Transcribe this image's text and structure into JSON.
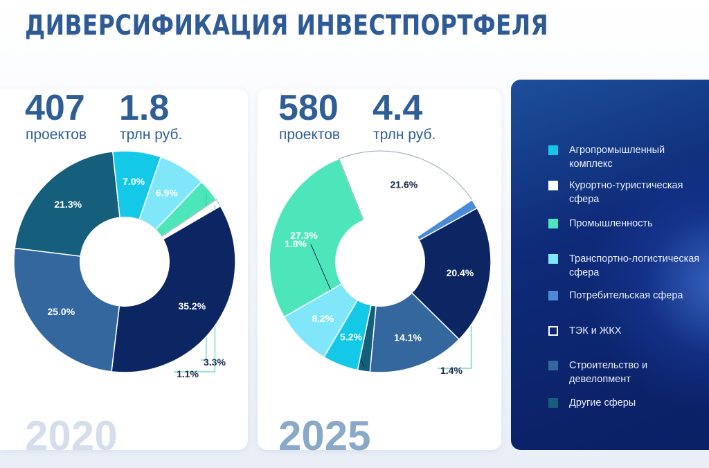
{
  "title": "ДИВЕРСИФИКАЦИЯ ИНВЕСТПОРТФЕЛЯ",
  "panels": [
    {
      "year": "2020",
      "projects_value": "407",
      "projects_label": "проектов",
      "amount_value": "1.8",
      "amount_label": "трлн руб."
    },
    {
      "year": "2025",
      "projects_value": "580",
      "projects_label": "проектов",
      "amount_value": "4.4",
      "amount_label": "трлн руб."
    }
  ],
  "legend": [
    {
      "label": "Агропромышленный комплекс",
      "color": "#14c8e8"
    },
    {
      "label": "Курортно-туристическая сфера",
      "color": "#ffffff"
    },
    {
      "label": "Промышленность",
      "color": "#4de6bb"
    },
    {
      "label": "Транспортно-логистическая сфера",
      "color": "#80e6fa"
    },
    {
      "label": "Потребительская сфера",
      "color": "#4a8ad8"
    },
    {
      "label": "ТЭК и ЖКХ",
      "color": "none"
    },
    {
      "label": "Строительство и девелопмент",
      "color": "#34679e"
    },
    {
      "label": "Другие сферы",
      "color": "#155e7c"
    }
  ],
  "chart_data": [
    {
      "type": "pie",
      "title": "2020",
      "slices": [
        {
          "category": "Другие сферы",
          "value": 21.3,
          "label": "21.3%",
          "color": "#155e7c"
        },
        {
          "category": "Агропромышленный комплекс",
          "value": 7.0,
          "label": "7.0%",
          "color": "#14c8e8"
        },
        {
          "category": "Транспортно-логистическая сфера",
          "value": 6.9,
          "label": "6.9%",
          "color": "#80e6fa"
        },
        {
          "category": "Промышленность",
          "value": 3.3,
          "label": "3.3%",
          "color": "#4de6bb"
        },
        {
          "category": "Курортно-туристическая сфера",
          "value": 1.1,
          "label": "1.1%",
          "color": "#ffffff"
        },
        {
          "category": "ТЭК и ЖКХ",
          "value": 35.2,
          "label": "35.2%",
          "color": "#0c2563"
        },
        {
          "category": "Строительство и девелопмент",
          "value": 25.0,
          "label": "25.0%",
          "color": "#34679e"
        }
      ]
    },
    {
      "type": "pie",
      "title": "2025",
      "slices": [
        {
          "category": "Промышленность",
          "value": 27.3,
          "label": "27.3%",
          "color": "#4de6bb"
        },
        {
          "category": "Курортно-туристическая сфера",
          "value": 21.6,
          "label": "21.6%",
          "color": "#ffffff"
        },
        {
          "category": "Потребительская сфера",
          "value": 1.4,
          "label": "1.4%",
          "color": "#4a8ad8"
        },
        {
          "category": "ТЭК и ЖКХ",
          "value": 20.4,
          "label": "20.4%",
          "color": "#0c2563"
        },
        {
          "category": "Строительство и девелопмент",
          "value": 14.1,
          "label": "14.1%",
          "color": "#34679e"
        },
        {
          "category": "Другие сферы",
          "value": 1.8,
          "label": "1.8%",
          "color": "#155e7c"
        },
        {
          "category": "Агропромышленный комплекс",
          "value": 5.2,
          "label": "5.2%",
          "color": "#14c8e8"
        },
        {
          "category": "Транспортно-логистическая сфера",
          "value": 8.2,
          "label": "8.2%",
          "color": "#80e6fa"
        }
      ]
    }
  ]
}
